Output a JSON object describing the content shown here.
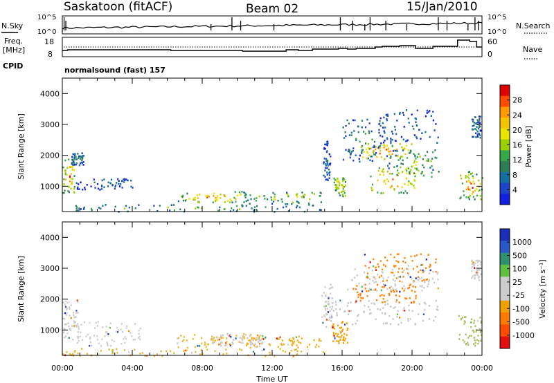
{
  "header": {
    "station": "Saskatoon (fitACF)",
    "beam": "Beam 02",
    "date": "15/Jan/2010"
  },
  "top_panels": {
    "nsky_label": "N.Sky",
    "nsky_ticks": [
      "10^5",
      "10^0"
    ],
    "nsearch_label": "N.Search",
    "nsearch_ticks": [
      "10^5",
      "10^0"
    ],
    "freq_label_line1": "Freq.",
    "freq_label_line2": "[MHz]",
    "freq_ticks": [
      "18",
      "8"
    ],
    "nave_label": "Nave",
    "nave_ticks": [
      "60",
      "0"
    ],
    "cpid_label": "CPID",
    "cpid_text": "normalsound (fast) 157"
  },
  "chart_data": [
    {
      "type": "heatmap",
      "name": "power",
      "xlabel": "",
      "ylabel": "Slant Range [km]",
      "yticks": [
        "4000",
        "3000",
        "2000",
        "1000"
      ],
      "xlim_hours": [
        0,
        24
      ],
      "ylim": [
        180,
        4500
      ],
      "colorbar_label": "Power [dB]",
      "colorbar_ticks": [
        "28",
        "24",
        "20",
        "16",
        "12",
        "8",
        "4"
      ],
      "colorbar_colors": [
        "#e00000",
        "#ff4a00",
        "#ff9a00",
        "#f5c400",
        "#e9e400",
        "#9cd000",
        "#36a84a",
        "#2f7d55",
        "#156ea0",
        "#1d44c8",
        "#1020e0"
      ],
      "blobs": [
        {
          "t0": 0.0,
          "t1": 0.7,
          "r0": 800,
          "r1": 1900,
          "level": 0.85
        },
        {
          "t0": 0.5,
          "t1": 1.2,
          "r0": 1700,
          "r1": 2100,
          "level": 0.3
        },
        {
          "t0": 0.7,
          "t1": 4.0,
          "r0": 900,
          "r1": 1300,
          "level": 0.2
        },
        {
          "t0": 6.6,
          "t1": 10.5,
          "r0": 500,
          "r1": 850,
          "level": 0.8
        },
        {
          "t0": 10.2,
          "t1": 14.9,
          "r0": 450,
          "r1": 850,
          "level": 0.6
        },
        {
          "t0": 0.2,
          "t1": 14.9,
          "r0": 200,
          "r1": 430,
          "level": 0.45
        },
        {
          "t0": 14.9,
          "t1": 15.3,
          "r0": 1200,
          "r1": 2500,
          "level": 0.2
        },
        {
          "t0": 15.5,
          "t1": 16.2,
          "r0": 700,
          "r1": 1300,
          "level": 0.75
        },
        {
          "t0": 16.0,
          "t1": 18.2,
          "r0": 1800,
          "r1": 3200,
          "level": 0.35
        },
        {
          "t0": 17.0,
          "t1": 20.0,
          "r0": 1900,
          "r1": 2400,
          "level": 0.9
        },
        {
          "t0": 17.5,
          "t1": 20.3,
          "r0": 800,
          "r1": 1700,
          "level": 0.85
        },
        {
          "t0": 18.0,
          "t1": 21.5,
          "r0": 2400,
          "r1": 3500,
          "level": 0.25
        },
        {
          "t0": 18.5,
          "t1": 21.5,
          "r0": 1300,
          "r1": 2200,
          "level": 0.55
        },
        {
          "t0": 22.7,
          "t1": 24.0,
          "r0": 600,
          "r1": 1500,
          "level": 0.85
        },
        {
          "t0": 23.4,
          "t1": 23.9,
          "r0": 2600,
          "r1": 3300,
          "level": 0.3
        }
      ]
    },
    {
      "type": "heatmap",
      "name": "velocity",
      "xlabel": "Time UT",
      "ylabel": "Slant Range [km]",
      "yticks": [
        "4000",
        "3000",
        "2000",
        "1000"
      ],
      "xticks": [
        "00:00",
        "04:00",
        "08:00",
        "12:00",
        "16:00",
        "20:00",
        "00:00"
      ],
      "xlim_hours": [
        0,
        24
      ],
      "ylim": [
        180,
        4500
      ],
      "colorbar_label": "Velocity [m s⁻¹]",
      "colorbar_ticks": [
        "1000",
        "500",
        "100",
        "25",
        "-25",
        "-100",
        "-500",
        "-1000"
      ],
      "colorbar_colors": [
        "#1a2fb8",
        "#2a58c8",
        "#2f9070",
        "#5fc040",
        "#cccccc",
        "#cccccc",
        "#f0a000",
        "#ff7a00",
        "#ff4a00",
        "#e01010"
      ],
      "blobs": [
        {
          "t0": 0.0,
          "t1": 0.9,
          "r0": 700,
          "r1": 2000,
          "c": "#cccccc"
        },
        {
          "t0": 0.7,
          "t1": 4.5,
          "r0": 500,
          "r1": 1300,
          "c": "#d0d0d0"
        },
        {
          "t0": 0.0,
          "t1": 14.9,
          "r0": 180,
          "r1": 420,
          "c": "#e8b830"
        },
        {
          "t0": 6.5,
          "t1": 10.8,
          "r0": 450,
          "r1": 900,
          "c": "#f2b830"
        },
        {
          "t0": 8.5,
          "t1": 11.5,
          "r0": 480,
          "r1": 900,
          "c": "#c8c8c8"
        },
        {
          "t0": 10.5,
          "t1": 14.9,
          "r0": 450,
          "r1": 820,
          "c": "#f0b020"
        },
        {
          "t0": 14.8,
          "t1": 15.4,
          "r0": 1100,
          "r1": 2500,
          "c": "#cccccc"
        },
        {
          "t0": 15.4,
          "t1": 16.3,
          "r0": 600,
          "r1": 1300,
          "c": "#f0a000"
        },
        {
          "t0": 15.3,
          "t1": 21.5,
          "r0": 1200,
          "r1": 2000,
          "c": "#c8c8c8"
        },
        {
          "t0": 16.5,
          "t1": 20.2,
          "r0": 1900,
          "r1": 2500,
          "c": "#ff8000"
        },
        {
          "t0": 17.0,
          "t1": 21.5,
          "r0": 2600,
          "r1": 3500,
          "c": "#ff8a10"
        },
        {
          "t0": 16.0,
          "t1": 21.5,
          "r0": 2300,
          "r1": 3000,
          "c": "#cccccc"
        },
        {
          "t0": 22.6,
          "t1": 24.0,
          "r0": 500,
          "r1": 1500,
          "c": "#a8c060"
        },
        {
          "t0": 23.3,
          "t1": 23.9,
          "r0": 2600,
          "r1": 3300,
          "c": "#cccccc"
        }
      ]
    }
  ]
}
